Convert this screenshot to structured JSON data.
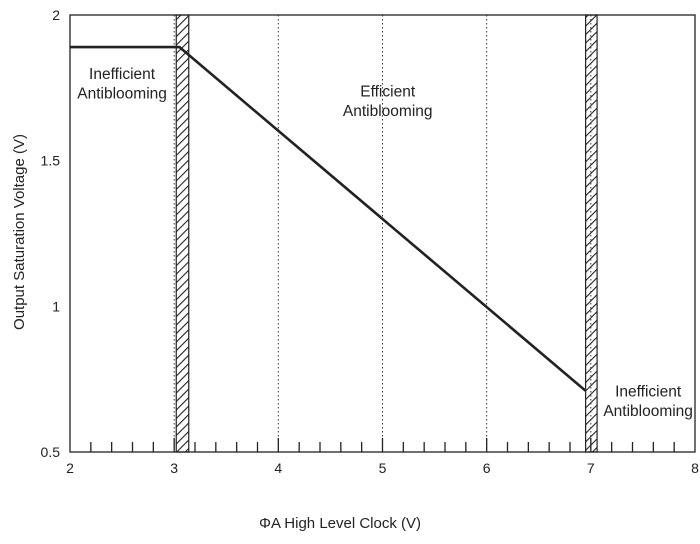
{
  "chart_data": {
    "type": "line",
    "title": "",
    "xlabel": "ΦA High Level Clock (V)",
    "ylabel": "Output Saturation Voltage (V)",
    "xlim": [
      2,
      8
    ],
    "ylim": [
      0.5,
      2
    ],
    "x_ticks": [
      "2",
      "3",
      "4",
      "5",
      "6",
      "7",
      "8"
    ],
    "y_ticks": [
      "0.5",
      "1",
      "1.5",
      "2"
    ],
    "x_minor_step": 0.2,
    "grid": "vertical dotted lines at x = 3, 4, 5, 6, 7",
    "series": [
      {
        "x": [
          2,
          3.05,
          6.95
        ],
        "y": [
          1.89,
          1.89,
          0.71
        ]
      }
    ],
    "hatched_bands": [
      {
        "x_range": [
          3.02,
          3.14
        ]
      },
      {
        "x_range": [
          6.95,
          7.06
        ]
      }
    ],
    "annotations": [
      {
        "lines": [
          "Inefficient",
          "Antiblooming"
        ],
        "x": 2.5,
        "y": 1.78
      },
      {
        "lines": [
          "Efficient",
          "Antiblooming"
        ],
        "x": 5.05,
        "y": 1.72
      },
      {
        "lines": [
          "Inefficient",
          "Antiblooming"
        ],
        "x": 7.55,
        "y": 0.69
      }
    ]
  }
}
